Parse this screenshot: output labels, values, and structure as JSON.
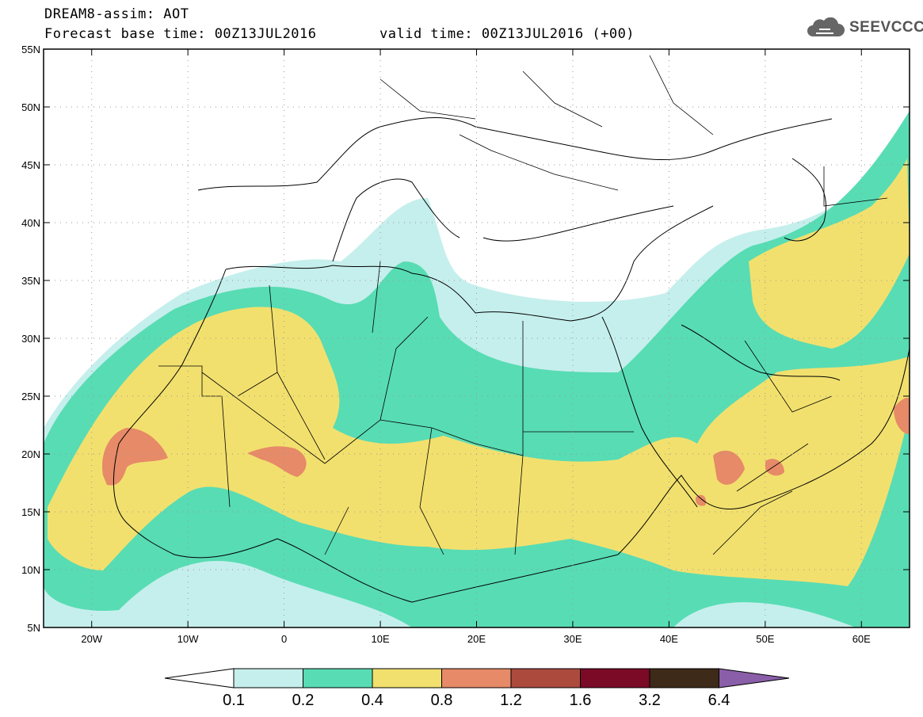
{
  "title": {
    "line1": "DREAM8-assim: AOT",
    "line2": "Forecast base time: 00Z13JUL2016",
    "valid": "valid time: 00Z13JUL2016 (+00)"
  },
  "logo": {
    "icon": "cloud-icon",
    "text": "SEEVCCC"
  },
  "map": {
    "lon_range": [
      -25,
      65
    ],
    "lat_range": [
      5,
      55
    ],
    "lat_ticks": [
      "5N",
      "10N",
      "15N",
      "20N",
      "25N",
      "30N",
      "35N",
      "40N",
      "45N",
      "50N",
      "55N"
    ],
    "lon_ticks": [
      "20W",
      "10W",
      "0",
      "10E",
      "20E",
      "30E",
      "40E",
      "50E",
      "60E"
    ],
    "field_colors": {
      "light": "#c5efec",
      "green": "#58dcb4",
      "yellow": "#f2e06e",
      "orange": "#e68a68"
    }
  },
  "colorbar": {
    "labels": [
      "0.1",
      "0.2",
      "0.4",
      "0.8",
      "1.2",
      "1.6",
      "3.2",
      "6.4"
    ],
    "colors": [
      "#ffffff",
      "#c5efec",
      "#58dcb4",
      "#f2e06e",
      "#e68a68",
      "#ac4a3e",
      "#7a0a26",
      "#3e2a18",
      "#8a5ea8"
    ]
  }
}
